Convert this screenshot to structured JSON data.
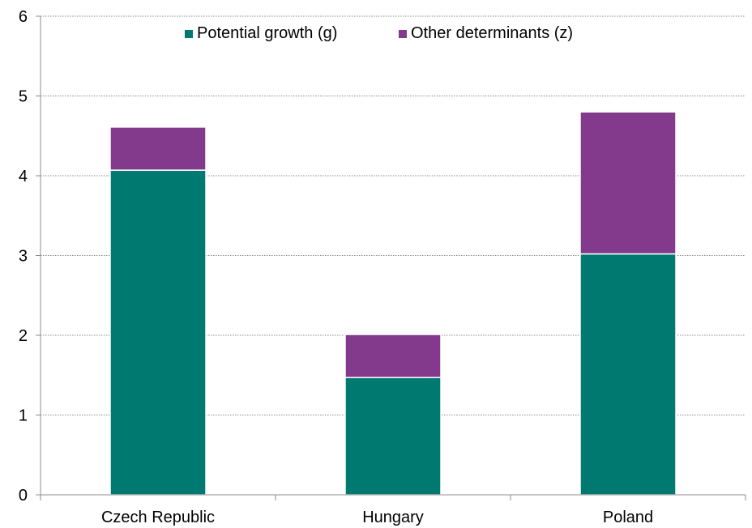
{
  "chart_data": {
    "type": "bar",
    "stacked": true,
    "categories": [
      "Czech Republic",
      "Hungary",
      "Poland"
    ],
    "series": [
      {
        "name": "Potential growth (g)",
        "values": [
          4.07,
          1.47,
          3.02
        ],
        "color": "#007A70"
      },
      {
        "name": "Other determinants (z)",
        "values": [
          0.54,
          0.54,
          1.78
        ],
        "color": "#843A8C"
      }
    ],
    "y_ticks": [
      "0",
      "1",
      "2",
      "3",
      "4",
      "5",
      "6"
    ],
    "ylim": [
      0,
      6
    ],
    "grid": true,
    "grid_style": "dotted",
    "legend_position": "top-center",
    "title": "",
    "xlabel": "",
    "ylabel": ""
  }
}
